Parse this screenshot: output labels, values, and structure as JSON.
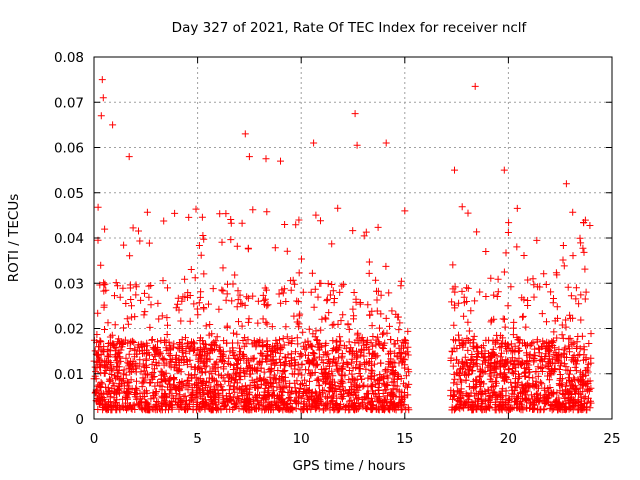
{
  "chart_data": {
    "type": "scatter",
    "title": "Day 327 of 2021, Rate Of TEC Index for receiver nclf",
    "xlabel": "GPS time / hours",
    "ylabel": "ROTI / TECUs",
    "xlim": [
      0,
      25
    ],
    "ylim": [
      0,
      0.08
    ],
    "x_ticks": [
      "0",
      "5",
      "10",
      "15",
      "20",
      "25"
    ],
    "y_ticks": [
      "0",
      "0.01",
      "0.02",
      "0.03",
      "0.04",
      "0.05",
      "0.06",
      "0.07",
      "0.08"
    ],
    "grid": true,
    "marker": "+",
    "color": "#ff0000",
    "coverage_gaps_hours": [
      [
        15.2,
        17.2
      ]
    ],
    "notable_points": [
      {
        "x": 0.4,
        "y": 0.075
      },
      {
        "x": 0.45,
        "y": 0.071
      },
      {
        "x": 0.35,
        "y": 0.067
      },
      {
        "x": 0.9,
        "y": 0.065
      },
      {
        "x": 12.6,
        "y": 0.0675
      },
      {
        "x": 18.4,
        "y": 0.0735
      },
      {
        "x": 7.3,
        "y": 0.063
      },
      {
        "x": 10.6,
        "y": 0.061
      },
      {
        "x": 14.1,
        "y": 0.061
      },
      {
        "x": 12.7,
        "y": 0.0605
      },
      {
        "x": 19.8,
        "y": 0.055
      },
      {
        "x": 17.4,
        "y": 0.055
      },
      {
        "x": 22.8,
        "y": 0.052
      },
      {
        "x": 1.7,
        "y": 0.058
      },
      {
        "x": 9.0,
        "y": 0.057
      },
      {
        "x": 7.5,
        "y": 0.058
      },
      {
        "x": 8.3,
        "y": 0.0575
      },
      {
        "x": 15.0,
        "y": 0.046
      }
    ],
    "background_level": {
      "typical_min": 0.002,
      "typical_max": 0.015
    }
  }
}
